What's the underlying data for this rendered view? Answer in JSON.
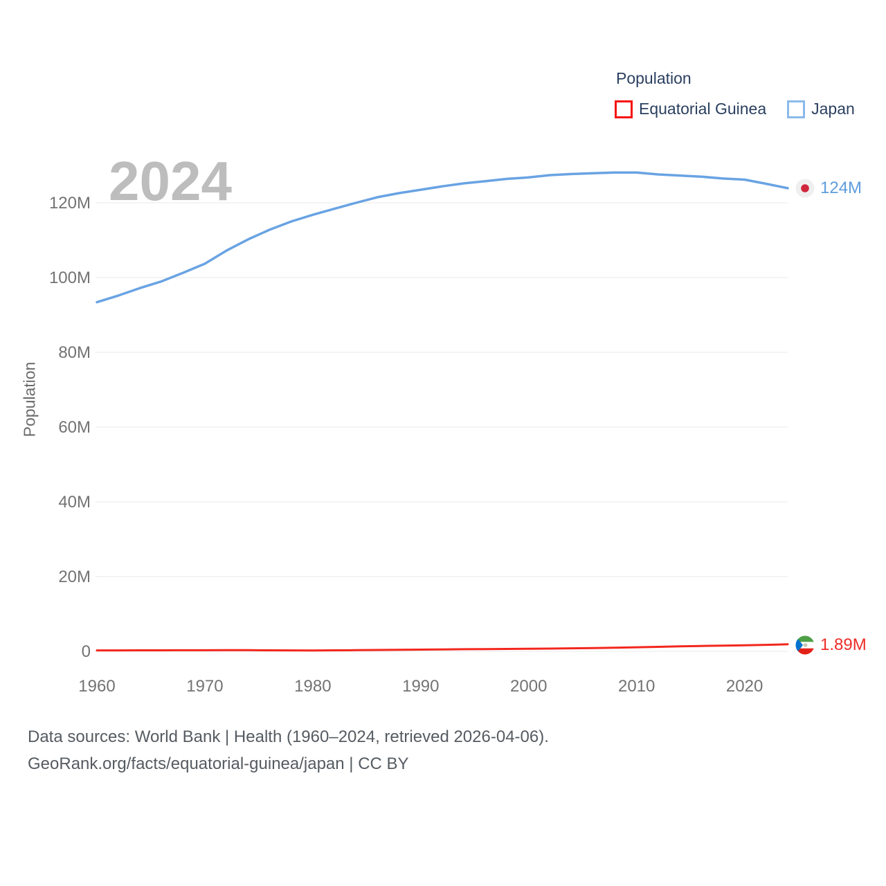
{
  "legend": {
    "title": "Population",
    "items": [
      {
        "label": "Equatorial Guinea",
        "color": "#f5120d"
      },
      {
        "label": "Japan",
        "color": "#8abaeb"
      }
    ]
  },
  "watermark": "2024",
  "y_axis": {
    "title": "Population",
    "ticks": [
      "0",
      "20M",
      "40M",
      "60M",
      "80M",
      "100M",
      "120M"
    ],
    "tick_values": [
      0,
      20,
      40,
      60,
      80,
      100,
      120
    ]
  },
  "x_axis": {
    "ticks": [
      "1960",
      "1970",
      "1980",
      "1990",
      "2000",
      "2010",
      "2020"
    ],
    "tick_values": [
      1960,
      1970,
      1980,
      1990,
      2000,
      2010,
      2020
    ]
  },
  "end_labels": [
    {
      "series": "Japan",
      "value": "124M",
      "color": "#5e9ddb",
      "icon": "japan-flag-icon"
    },
    {
      "series": "Equatorial Guinea",
      "value": "1.89M",
      "color": "#ee2d26",
      "icon": "equatorial-guinea-flag-icon"
    }
  ],
  "footer": {
    "line1": "Data sources: World Bank | Health (1960–2024, retrieved 2026-04-06).",
    "line2": "GeoRank.org/facts/equatorial-guinea/japan | CC BY"
  },
  "style": {
    "grid_color": "#e9e9e9",
    "tick_color": "#737373",
    "watermark_color": "#bdbdbd",
    "legend_text_color": "#2a3f5f"
  },
  "chart_data": {
    "type": "line",
    "title": "Population",
    "xlabel": "",
    "ylabel": "Population",
    "xlim": [
      1960,
      2024
    ],
    "ylim": [
      0,
      132
    ],
    "grid": "horizontal",
    "legend_position": "top-right",
    "x": [
      1960,
      1962,
      1964,
      1966,
      1968,
      1970,
      1972,
      1974,
      1976,
      1978,
      1980,
      1982,
      1984,
      1986,
      1988,
      1990,
      1992,
      1994,
      1996,
      1998,
      2000,
      2002,
      2004,
      2006,
      2008,
      2010,
      2012,
      2014,
      2016,
      2018,
      2020,
      2022,
      2023,
      2024
    ],
    "series": [
      {
        "name": "Equatorial Guinea",
        "color": "#f3271e",
        "width": 3,
        "values": [
          0.25,
          0.26,
          0.27,
          0.28,
          0.29,
          0.3,
          0.31,
          0.31,
          0.28,
          0.25,
          0.24,
          0.28,
          0.32,
          0.37,
          0.42,
          0.47,
          0.52,
          0.57,
          0.61,
          0.65,
          0.68,
          0.74,
          0.81,
          0.89,
          0.98,
          1.09,
          1.21,
          1.33,
          1.44,
          1.54,
          1.63,
          1.74,
          1.81,
          1.89
        ]
      },
      {
        "name": "Japan",
        "color": "#69a3e3",
        "width": 3.5,
        "values": [
          93.4,
          95.2,
          97.2,
          99.0,
          101.3,
          103.7,
          107.2,
          110.2,
          112.8,
          115.0,
          116.8,
          118.4,
          120.0,
          121.5,
          122.6,
          123.5,
          124.4,
          125.2,
          125.8,
          126.4,
          126.8,
          127.4,
          127.7,
          127.9,
          128.1,
          128.1,
          127.6,
          127.3,
          127.0,
          126.5,
          126.2,
          125.1,
          124.5,
          123.9
        ]
      }
    ]
  }
}
